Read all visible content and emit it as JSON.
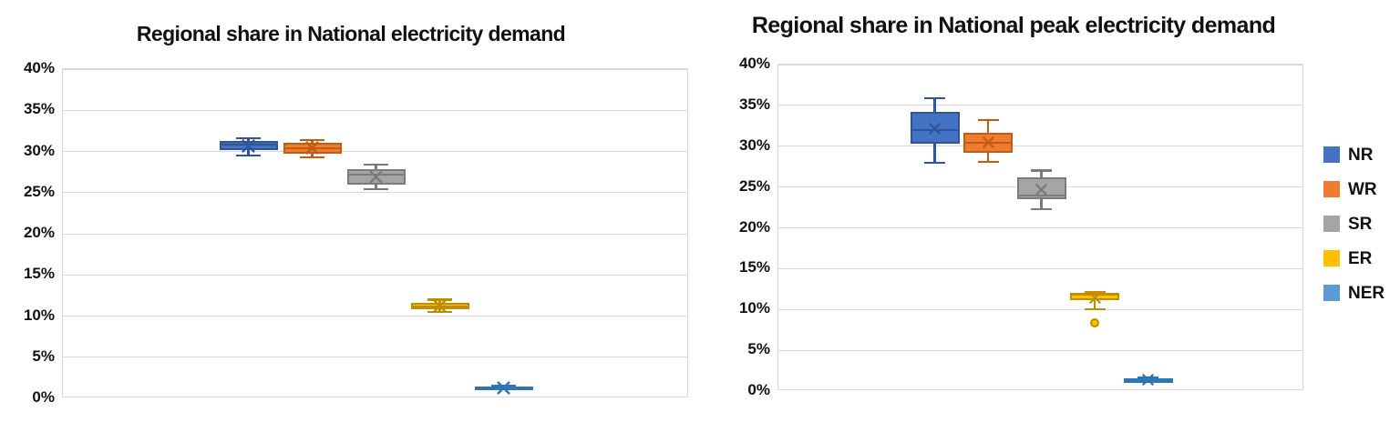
{
  "chart_data": [
    {
      "type": "boxplot",
      "title": "Regional share in National electricity demand",
      "ylim": [
        0,
        40
      ],
      "y_step": 5,
      "y_tick_labels": [
        "0%",
        "5%",
        "10%",
        "15%",
        "20%",
        "25%",
        "30%",
        "35%",
        "40%"
      ],
      "grid": true,
      "xlabel": "",
      "ylabel": "",
      "series": [
        {
          "name": "NR",
          "fill": "#4472C4",
          "stroke": "#2F5597",
          "min": 29.5,
          "q1": 30.2,
          "median": 30.8,
          "q3": 31.3,
          "max": 31.6,
          "mean": 30.7,
          "outliers": []
        },
        {
          "name": "WR",
          "fill": "#ED7D31",
          "stroke": "#C55A11",
          "min": 29.3,
          "q1": 29.7,
          "median": 30.4,
          "q3": 31.0,
          "max": 31.4,
          "mean": 30.4,
          "outliers": []
        },
        {
          "name": "SR",
          "fill": "#A5A5A5",
          "stroke": "#7B7B7B",
          "min": 25.4,
          "q1": 26.0,
          "median": 27.2,
          "q3": 27.8,
          "max": 28.4,
          "mean": 26.9,
          "outliers": []
        },
        {
          "name": "ER",
          "fill": "#FFC000",
          "stroke": "#BF8F00",
          "min": 10.5,
          "q1": 10.8,
          "median": 11.2,
          "q3": 11.6,
          "max": 12.0,
          "mean": 11.2,
          "outliers": []
        },
        {
          "name": "NER",
          "fill": "#5B9BD5",
          "stroke": "#2E75B6",
          "min": 1.1,
          "q1": 1.2,
          "median": 1.3,
          "q3": 1.4,
          "max": 1.5,
          "mean": 1.3,
          "outliers": []
        }
      ]
    },
    {
      "type": "boxplot",
      "title": "Regional share in National peak electricity demand",
      "ylim": [
        0,
        40
      ],
      "y_step": 5,
      "y_tick_labels": [
        "0%",
        "5%",
        "10%",
        "15%",
        "20%",
        "25%",
        "30%",
        "35%",
        "40%"
      ],
      "grid": true,
      "xlabel": "",
      "ylabel": "",
      "series": [
        {
          "name": "NR",
          "fill": "#4472C4",
          "stroke": "#2F5597",
          "min": 28.0,
          "q1": 30.3,
          "median": 32.0,
          "q3": 34.2,
          "max": 35.9,
          "mean": 32.2,
          "outliers": []
        },
        {
          "name": "WR",
          "fill": "#ED7D31",
          "stroke": "#C55A11",
          "min": 28.1,
          "q1": 29.2,
          "median": 30.4,
          "q3": 31.6,
          "max": 33.2,
          "mean": 30.5,
          "outliers": []
        },
        {
          "name": "SR",
          "fill": "#A5A5A5",
          "stroke": "#7B7B7B",
          "min": 22.3,
          "q1": 23.5,
          "median": 24.0,
          "q3": 26.2,
          "max": 27.0,
          "mean": 24.7,
          "outliers": []
        },
        {
          "name": "ER",
          "fill": "#FFC000",
          "stroke": "#BF8F00",
          "min": 10.0,
          "q1": 11.1,
          "median": 11.8,
          "q3": 12.0,
          "max": 12.1,
          "mean": 11.4,
          "outliers": [
            8.4
          ]
        },
        {
          "name": "NER",
          "fill": "#5B9BD5",
          "stroke": "#2E75B6",
          "min": 1.2,
          "q1": 1.3,
          "median": 1.4,
          "q3": 1.5,
          "max": 1.6,
          "mean": 1.4,
          "outliers": []
        }
      ]
    }
  ],
  "legend": {
    "position": "right",
    "items": [
      {
        "label": "NR",
        "color": "#4472C4"
      },
      {
        "label": "WR",
        "color": "#ED7D31"
      },
      {
        "label": "SR",
        "color": "#A5A5A5"
      },
      {
        "label": "ER",
        "color": "#FFC000"
      },
      {
        "label": "NER",
        "color": "#5B9BD5"
      }
    ]
  },
  "colors": {
    "gridline": "#d9d9d9",
    "text": "#111111",
    "background": "#ffffff"
  }
}
